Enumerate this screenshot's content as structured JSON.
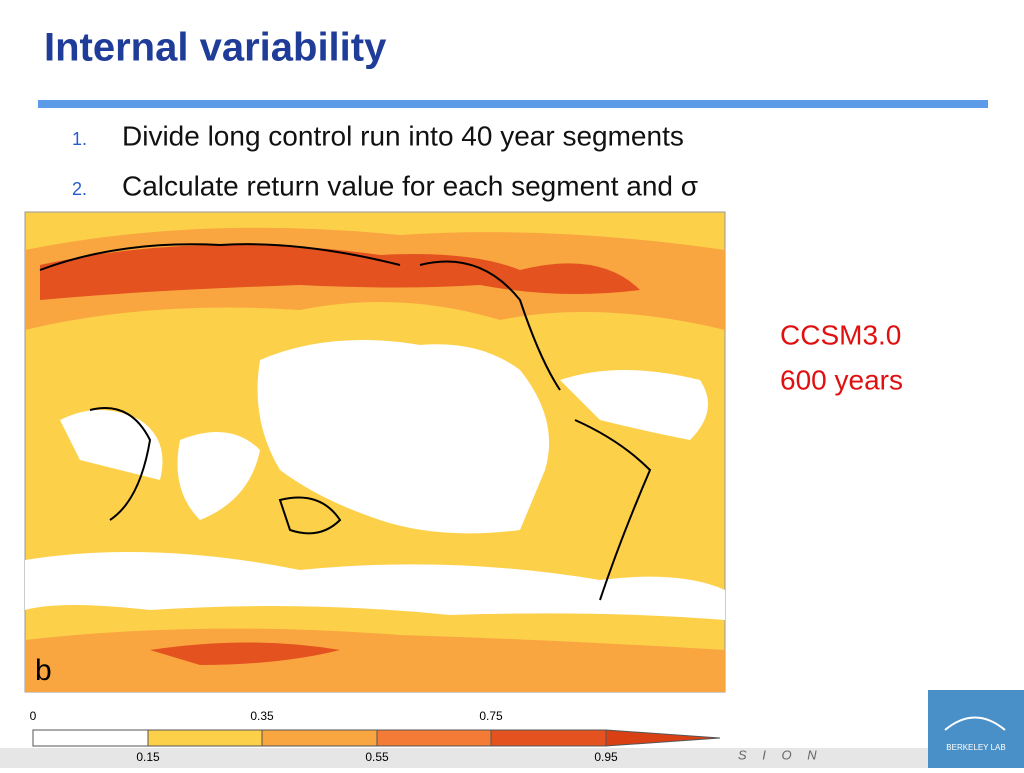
{
  "header": {
    "title": "Internal variability"
  },
  "list": [
    {
      "number": "1.",
      "text": "Divide long control run into 40 year segments"
    },
    {
      "number": "2.",
      "text": "Calculate return value for each segment and σ"
    }
  ],
  "map": {
    "panel_label": "b"
  },
  "annotation": [
    "CCSM3.0",
    "600 years"
  ],
  "colorbar": {
    "top_labels": [
      "0",
      "0.35",
      "0.75"
    ],
    "bottom_labels": [
      "0.15",
      "0.55",
      "0.95"
    ]
  },
  "footer": {
    "text": "S I O N"
  },
  "logo": {
    "text": "BERKELEY LAB"
  }
}
